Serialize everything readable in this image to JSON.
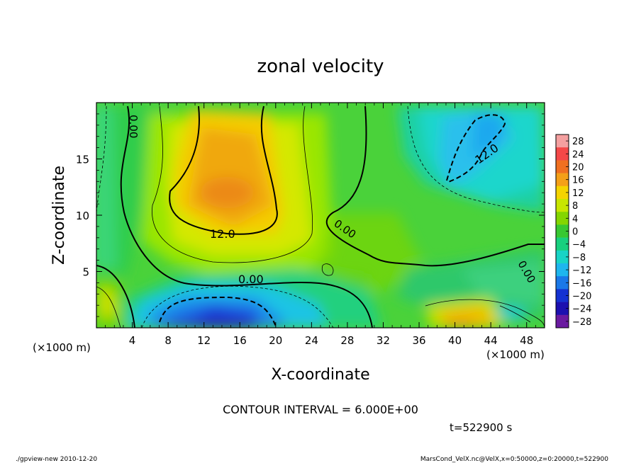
{
  "chart_data": {
    "type": "heatmap",
    "title": "zonal velocity",
    "xlabel": "X-coordinate",
    "ylabel": "Z-coordinate",
    "x_unit_label": "(×1000 m)",
    "y_unit_label": "(×1000 m)",
    "x_ticks": [
      "4",
      "8",
      "12",
      "16",
      "20",
      "24",
      "28",
      "32",
      "36",
      "40",
      "44",
      "48"
    ],
    "y_ticks": [
      "5",
      "10",
      "15"
    ],
    "xlim": [
      0,
      50
    ],
    "ylim": [
      0,
      20
    ],
    "colorbar": {
      "labels": [
        "28",
        "24",
        "20",
        "16",
        "12",
        "8",
        "4",
        "0",
        "−4",
        "−8",
        "−12",
        "−16",
        "−20",
        "−24",
        "−28"
      ],
      "levels": [
        28,
        24,
        20,
        16,
        12,
        8,
        4,
        0,
        -4,
        -8,
        -12,
        -16,
        -20,
        -24,
        -28
      ],
      "colors": [
        "#f4a0a0",
        "#f44848",
        "#f07020",
        "#f4a018",
        "#f4d400",
        "#c8e600",
        "#84d600",
        "#38c832",
        "#18d07e",
        "#18d4c6",
        "#1eb6ee",
        "#1a78e8",
        "#1432d2",
        "#1c10b0",
        "#6a1aa0"
      ]
    },
    "contour_labels": [
      {
        "text": "0.00",
        "x": 4.0,
        "y": 17.0
      },
      {
        "text": "12.0",
        "x": 14.8,
        "y": 8.3
      },
      {
        "text": "0.00",
        "x": 17.5,
        "y": 4.4
      },
      {
        "text": "0.00",
        "x": 28.0,
        "y": 8.0
      },
      {
        "text": "12.0",
        "x": 43.5,
        "y": 15.5
      },
      {
        "text": "0.00",
        "x": 47.3,
        "y": 4.6
      }
    ],
    "contour_interval_text": "CONTOUR INTERVAL = 6.000E+00",
    "time_text": "t=522900 s"
  },
  "footer": {
    "left": "./gpview-new  2010-12-20",
    "right": "MarsCond_VelX.nc@VelX,x=0:50000,z=0:20000,t=522900"
  }
}
